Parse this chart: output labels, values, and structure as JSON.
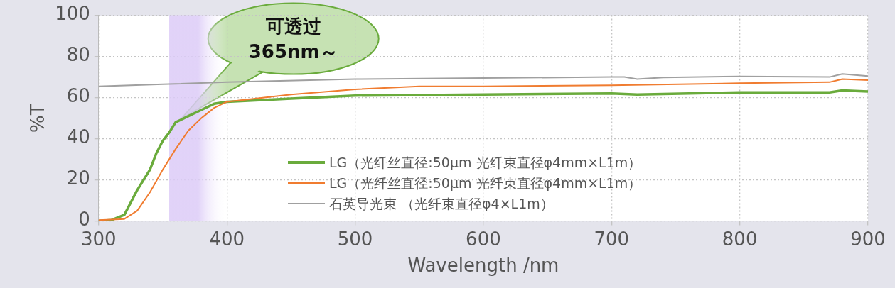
{
  "chart_data": {
    "type": "line",
    "xlabel": "Wavelength /nm",
    "ylabel": "%T",
    "xlim": [
      300,
      900
    ],
    "xticks": [
      300,
      400,
      500,
      600,
      700,
      800,
      900
    ],
    "ylim": [
      0,
      100
    ],
    "yticks": [
      0,
      20,
      40,
      60,
      80,
      100
    ],
    "grid": true,
    "legend": "bottom",
    "marker": "none",
    "line_style": "solid",
    "bands": [
      {
        "axis": "x",
        "from": 355,
        "to": 400,
        "color": "#dccbf7"
      }
    ],
    "annotations": [
      "可透过\n365nm～"
    ],
    "series": [
      {
        "name": "LG（光纤丝直径:50μm 光纤束直径φ4mm×L1m）",
        "color": "#6aab3c",
        "x": [
          300,
          310,
          320,
          330,
          340,
          345,
          350,
          355,
          360,
          370,
          380,
          390,
          400,
          450,
          500,
          600,
          700,
          720,
          800,
          860,
          870,
          880,
          900
        ],
        "values": [
          0,
          0.5,
          3,
          15,
          25,
          33,
          39,
          43,
          48,
          51,
          54,
          57,
          58,
          59.5,
          61,
          61.5,
          62,
          61.5,
          62.5,
          62.5,
          62.5,
          63.5,
          63
        ]
      },
      {
        "name": "LG（光纤丝直径:50μm 光纤束直径φ4mm×L1m）",
        "color": "#f07c30",
        "x": [
          300,
          320,
          330,
          340,
          350,
          360,
          370,
          380,
          390,
          400,
          450,
          500,
          550,
          600,
          700,
          800,
          870,
          880,
          900
        ],
        "values": [
          0.5,
          1,
          5,
          14,
          25,
          35,
          44,
          50,
          55,
          58,
          61.5,
          64,
          65.5,
          65.5,
          66,
          67,
          67.5,
          69,
          68.5
        ]
      },
      {
        "name": "石英导光束 （光纤束直径φ4×L1m）",
        "color": "#a0a0a0",
        "x": [
          300,
          350,
          400,
          500,
          600,
          700,
          710,
          720,
          740,
          800,
          870,
          880,
          900
        ],
        "values": [
          65.5,
          66.5,
          67.5,
          69,
          69.5,
          70,
          70,
          69,
          69.8,
          70.3,
          70,
          71.5,
          70.5
        ]
      }
    ]
  }
}
